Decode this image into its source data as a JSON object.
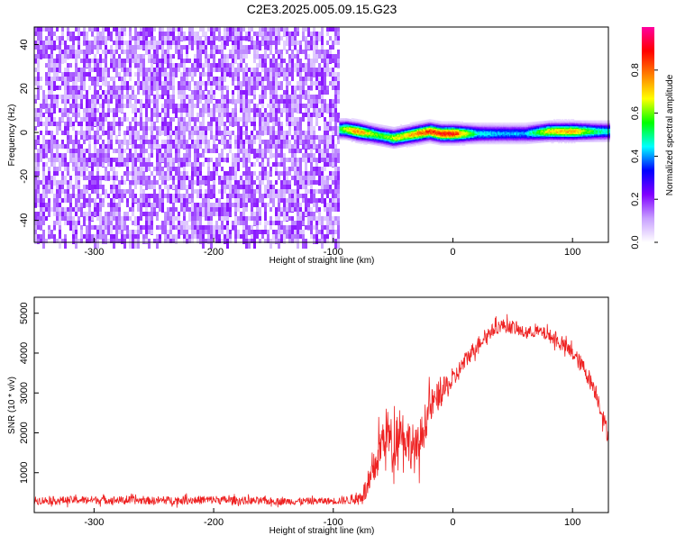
{
  "figure_title": "C2E3.2025.005.09.15.G23",
  "chart_data": [
    {
      "type": "heatmap",
      "title": "C2E3.2025.005.09.15.G23",
      "xlabel": "Height of straight line (km)",
      "ylabel": "Frequency (Hz)",
      "xlim": [
        -350,
        130
      ],
      "ylim": [
        -50,
        48
      ],
      "x_ticks": [
        -300,
        -200,
        -100,
        0,
        100
      ],
      "y_ticks": [
        -40,
        -20,
        0,
        20,
        40
      ],
      "colorbar": {
        "label": "Normalized spectral amplitude",
        "range": [
          0,
          1
        ],
        "ticks": [
          0.0,
          0.2,
          0.4,
          0.6,
          0.8
        ],
        "colors": [
          "#ffffff",
          "#c8a0ff",
          "#8000ff",
          "#0000ff",
          "#00ffff",
          "#00ff00",
          "#ffff00",
          "#ff8000",
          "#ff0000",
          "#ff00a0"
        ]
      },
      "regions": [
        {
          "x_range": [
            -350,
            -95
          ],
          "freq_range": [
            -50,
            48
          ],
          "description_level": 0.1
        },
        {
          "x_range": [
            -95,
            130
          ],
          "freq_center": 0,
          "freq_halfwidth": 3,
          "peak_level": 0.9
        }
      ],
      "ridge": {
        "x": [
          -100,
          -90,
          -80,
          -70,
          -60,
          -50,
          -40,
          -30,
          -20,
          -10,
          0,
          20,
          40,
          60,
          80,
          100,
          120,
          130
        ],
        "freq": [
          2,
          2,
          1,
          0,
          -1,
          -2,
          -1,
          0,
          1,
          0,
          0,
          0,
          0,
          0,
          1,
          1,
          1,
          1
        ],
        "amplitude": [
          0.5,
          0.7,
          0.85,
          0.7,
          0.6,
          0.7,
          0.75,
          0.85,
          0.9,
          0.95,
          0.95,
          0.5,
          0.45,
          0.45,
          0.75,
          0.8,
          0.55,
          0.5
        ]
      }
    },
    {
      "type": "line",
      "xlabel": "Height of straight line (km)",
      "ylabel": "SNR (10 * v/v)",
      "xlim": [
        -350,
        130
      ],
      "ylim": [
        0,
        5400
      ],
      "x_ticks": [
        -300,
        -200,
        -100,
        0,
        100
      ],
      "y_ticks": [
        1000,
        2000,
        3000,
        4000,
        5000
      ],
      "color": "#ee2222",
      "series": [
        {
          "x": [
            -350,
            -300,
            -250,
            -200,
            -150,
            -100,
            -80,
            -70,
            -60,
            -55,
            -50,
            -45,
            -40,
            -30,
            -20,
            -10,
            0,
            10,
            20,
            30,
            40,
            50,
            60,
            70,
            80,
            90,
            100,
            110,
            120,
            130
          ],
          "mean": [
            300,
            320,
            300,
            320,
            280,
            290,
            330,
            650,
            1700,
            2100,
            1600,
            2200,
            1900,
            1500,
            2600,
            3000,
            3300,
            3800,
            4200,
            4500,
            4700,
            4650,
            4500,
            4550,
            4450,
            4250,
            4000,
            3600,
            3000,
            1900
          ],
          "spread": [
            200,
            200,
            200,
            220,
            180,
            180,
            250,
            700,
            1200,
            1200,
            1300,
            1200,
            1200,
            1200,
            900,
            700,
            500,
            450,
            400,
            350,
            350,
            350,
            300,
            300,
            350,
            350,
            400,
            450,
            450,
            450
          ]
        }
      ]
    }
  ]
}
